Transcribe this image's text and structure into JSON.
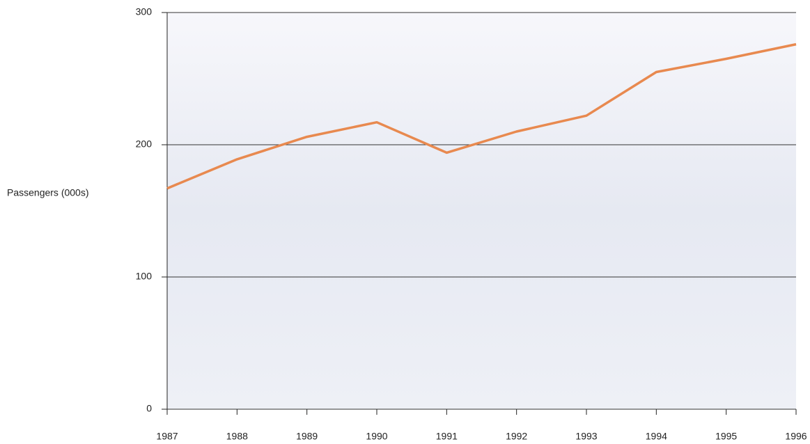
{
  "chart_data": {
    "type": "line",
    "y_label": "Passengers (000s)",
    "x": [
      1987,
      1988,
      1989,
      1990,
      1991,
      1992,
      1993,
      1994,
      1995,
      1996
    ],
    "values": [
      167,
      189,
      206,
      217,
      194,
      210,
      222,
      255,
      265,
      276
    ],
    "color": "#e8894f",
    "xlim": [
      1987,
      1996
    ],
    "xticks": [
      1987,
      1988,
      1989,
      1990,
      1991,
      1992,
      1993,
      1994,
      1995,
      1996
    ],
    "ylim": [
      0,
      300
    ],
    "yticks": [
      0,
      100,
      200,
      300
    ],
    "grid": true
  }
}
